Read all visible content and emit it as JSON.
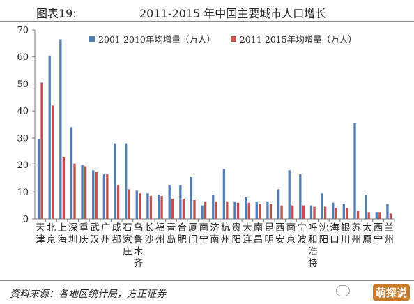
{
  "figure": {
    "label": "图表19:",
    "title": "2011-2015 年中国主要城市人口增长"
  },
  "source": "资料来源：各地区统计局，方正证券",
  "watermark": "萌探说",
  "chart_data": {
    "type": "bar",
    "categories": [
      "天津",
      "北京",
      "上海",
      "深圳",
      "重庆",
      "武汉",
      "广州",
      "成都",
      "石家庄",
      "乌鲁木齐",
      "长沙",
      "福州",
      "青岛",
      "合肥",
      "厦门",
      "南宁",
      "济南",
      "杭州",
      "贵阳",
      "大连",
      "南昌",
      "昆明",
      "西安",
      "南京",
      "宁波",
      "呼和浩特",
      "沈阳",
      "海口",
      "银川",
      "苏州",
      "太原",
      "西宁",
      "兰州"
    ],
    "category_label_lines": [
      [
        "天",
        "津"
      ],
      [
        "北",
        "京"
      ],
      [
        "上",
        "海"
      ],
      [
        "深",
        "圳"
      ],
      [
        "重",
        "庆"
      ],
      [
        "武",
        "汉"
      ],
      [
        "广",
        "州"
      ],
      [
        "成",
        "都"
      ],
      [
        "石",
        "家",
        "庄"
      ],
      [
        "乌",
        "鲁",
        "木",
        "齐"
      ],
      [
        "长",
        "沙"
      ],
      [
        "福",
        "州"
      ],
      [
        "青",
        "岛"
      ],
      [
        "合",
        "肥"
      ],
      [
        "厦",
        "门"
      ],
      [
        "南",
        "宁"
      ],
      [
        "济",
        "南"
      ],
      [
        "杭",
        "州"
      ],
      [
        "贵",
        "阳"
      ],
      [
        "大",
        "连"
      ],
      [
        "南",
        "昌"
      ],
      [
        "昆",
        "明"
      ],
      [
        "西",
        "安"
      ],
      [
        "南",
        "京"
      ],
      [
        "宁",
        "波"
      ],
      [
        "呼",
        "和",
        "浩",
        "特"
      ],
      [
        "沈",
        "阳"
      ],
      [
        "海",
        "口"
      ],
      [
        "银",
        "川"
      ],
      [
        "苏",
        "州"
      ],
      [
        "太",
        "原"
      ],
      [
        "西",
        "宁"
      ],
      [
        "兰",
        "州"
      ]
    ],
    "series": [
      {
        "name": "2001-2010年均增量（万人）",
        "color": "#4f7db5",
        "values": [
          29.5,
          60.5,
          66.5,
          34,
          20,
          18,
          16.5,
          28,
          28,
          10.5,
          9.5,
          9,
          12.5,
          12.5,
          15.5,
          5,
          9,
          18.5,
          6.5,
          8,
          6.5,
          6.5,
          11,
          18,
          16.5,
          5,
          9.5,
          6,
          5.5,
          35.5,
          9,
          2.5,
          5.5
        ]
      },
      {
        "name": "2011-2015年均增量（万人）",
        "color": "#c0504d",
        "values": [
          50.5,
          42,
          23,
          20.5,
          19.5,
          17.5,
          16.5,
          12.5,
          11,
          9.5,
          8.5,
          8.5,
          7.5,
          7.5,
          7,
          6.5,
          6.5,
          6.5,
          6,
          6,
          5.5,
          5.5,
          5,
          5,
          5,
          4.5,
          4.5,
          4,
          4,
          3,
          2.5,
          2.5,
          2
        ]
      }
    ],
    "xlabel": "",
    "ylabel": "",
    "ylim": [
      0,
      70
    ],
    "yticks": [
      0,
      10,
      20,
      30,
      40,
      50,
      60,
      70
    ],
    "grid": false,
    "legend": "top"
  }
}
